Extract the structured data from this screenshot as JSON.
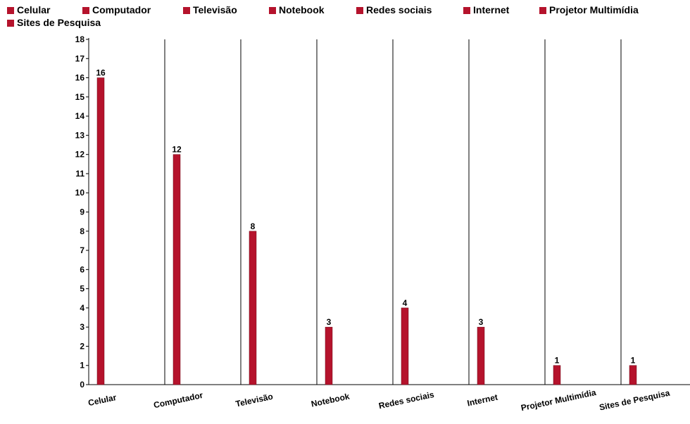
{
  "chart_data": {
    "type": "bar",
    "title": "",
    "xlabel": "",
    "ylabel": "",
    "categories": [
      "Celular",
      "Computador",
      "Televisão",
      "Notebook",
      "Redes sociais",
      "Internet",
      "Projetor Multimídia",
      "Sites de Pesquisa"
    ],
    "series": [
      {
        "values": [
          16,
          12,
          8,
          3,
          4,
          3,
          1,
          1
        ],
        "color": "#b5132c"
      }
    ],
    "ylim": [
      0,
      18
    ],
    "yticks": [
      "0",
      "1",
      "2",
      "3",
      "4",
      "5",
      "6",
      "7",
      "8",
      "9",
      "10",
      "11",
      "12",
      "13",
      "14",
      "15",
      "16",
      "17",
      "18"
    ],
    "legend": {
      "placement": "top",
      "entries": [
        "Celular",
        "Computador",
        "Televisão",
        "Notebook",
        "Redes sociais",
        "Internet",
        "Projetor Multimídia",
        "Sites de Pesquisa"
      ]
    },
    "grid": {
      "vertical": true,
      "horizontal": false
    },
    "data_labels": true
  }
}
